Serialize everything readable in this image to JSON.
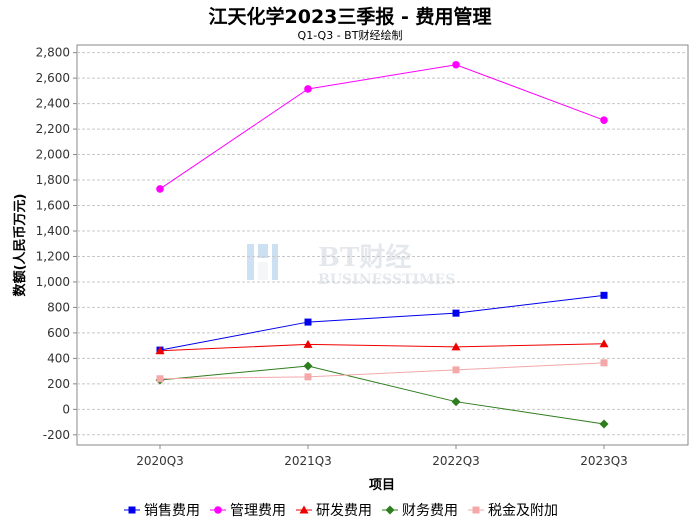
{
  "title": "江天化学2023三季报 - 费用管理",
  "subtitle": "Q1-Q3 - BT财经绘制",
  "watermark": {
    "cn": "BT财经",
    "en": "BUSINESSTIMES"
  },
  "chart_data": {
    "type": "line",
    "title": "江天化学2023三季报 - 费用管理",
    "subtitle": "Q1-Q3 - BT财经绘制",
    "xlabel": "项目",
    "ylabel": "数额(人民币万元)",
    "categories": [
      "2020Q3",
      "2021Q3",
      "2022Q3",
      "2023Q3"
    ],
    "ylim": [
      -280,
      2860
    ],
    "yticks": [
      -200,
      0,
      200,
      400,
      600,
      800,
      1000,
      1200,
      1400,
      1600,
      1800,
      2000,
      2200,
      2400,
      2600,
      2800
    ],
    "ytick_labels": [
      "-200",
      "0",
      "200",
      "400",
      "600",
      "800",
      "1,000",
      "1,200",
      "1,400",
      "1,600",
      "1,800",
      "2,000",
      "2,200",
      "2,400",
      "2,600",
      "2,800"
    ],
    "grid": true,
    "legend_position": "bottom",
    "series": [
      {
        "name": "销售费用",
        "color": "#0000ee",
        "marker": "square",
        "values": [
          465,
          685,
          755,
          895
        ]
      },
      {
        "name": "管理费用",
        "color": "#ff00ff",
        "marker": "circle",
        "values": [
          1730,
          2515,
          2705,
          2270
        ]
      },
      {
        "name": "研发费用",
        "color": "#ee0000",
        "marker": "triangle",
        "values": [
          460,
          510,
          490,
          515
        ]
      },
      {
        "name": "财务费用",
        "color": "#2e7d1e",
        "marker": "diamond",
        "values": [
          230,
          340,
          60,
          -115
        ]
      },
      {
        "name": "税金及附加",
        "color": "#f4a8a8",
        "marker": "square",
        "values": [
          240,
          255,
          310,
          365
        ]
      }
    ]
  }
}
